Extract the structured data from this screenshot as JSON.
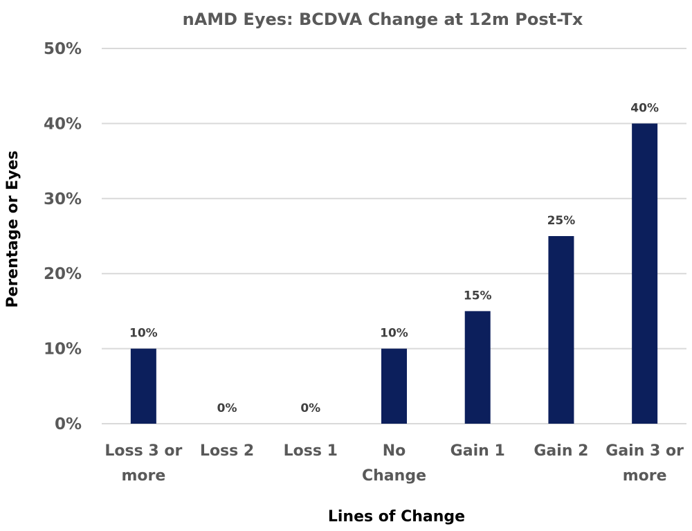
{
  "chart_data": {
    "type": "bar",
    "title": "nAMD Eyes: BCDVA Change at 12m Post-Tx",
    "xlabel": "Lines of Change",
    "ylabel": "Perentage or Eyes",
    "categories": [
      [
        "Loss 3 or",
        "more"
      ],
      [
        "Loss 2"
      ],
      [
        "Loss 1"
      ],
      [
        "No",
        "Change"
      ],
      [
        "Gain 1"
      ],
      [
        "Gain 2"
      ],
      [
        "Gain 3 or",
        "more"
      ]
    ],
    "values": [
      10,
      0,
      0,
      10,
      15,
      25,
      40
    ],
    "data_labels": [
      "10%",
      "0%",
      "0%",
      "10%",
      "15%",
      "25%",
      "40%"
    ],
    "ylim": [
      0,
      50
    ],
    "yticks": [
      0,
      10,
      20,
      30,
      40,
      50
    ],
    "ytick_labels": [
      "0%",
      "10%",
      "20%",
      "30%",
      "40%",
      "50%"
    ],
    "grid": true,
    "legend": "none",
    "bar_color": "#0c1f5c",
    "grid_color": "#d9d9d9"
  }
}
